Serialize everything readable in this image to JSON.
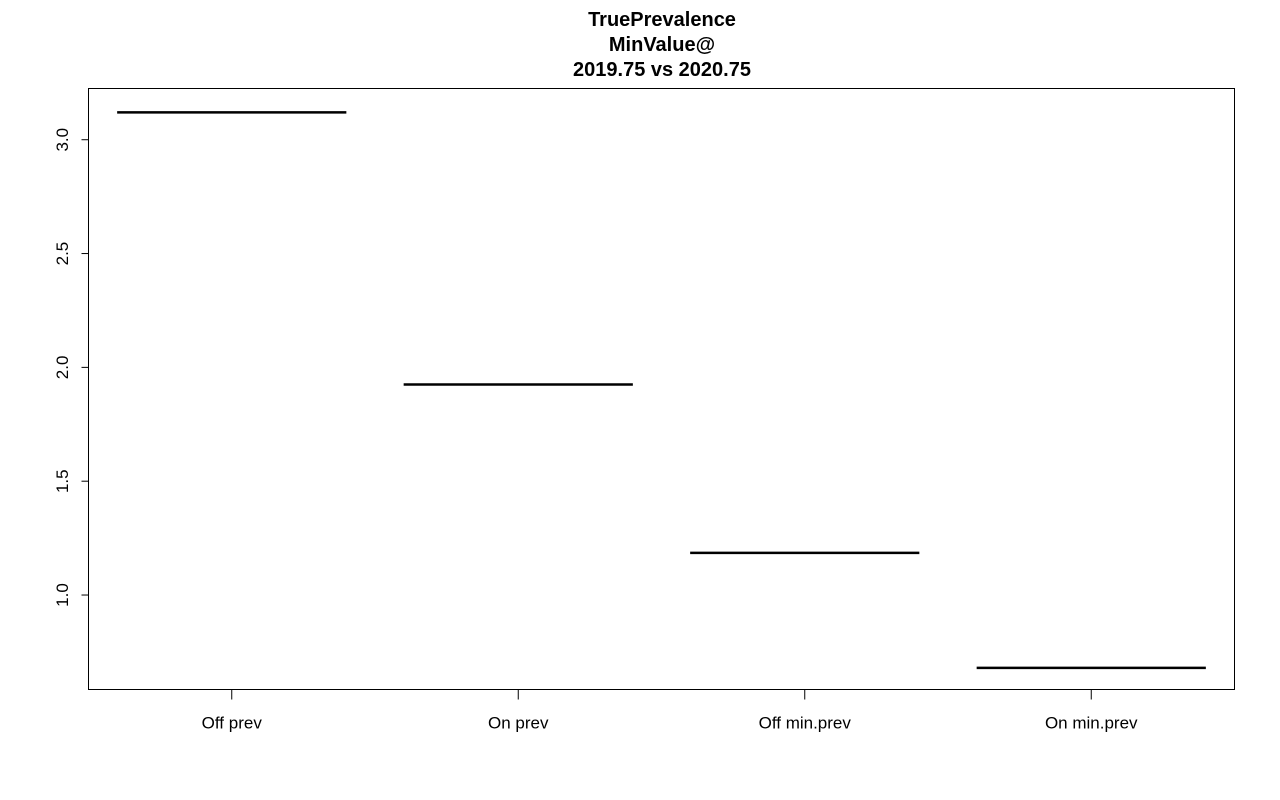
{
  "chart_data": {
    "type": "box",
    "title_lines": [
      "TruePrevalence",
      "MinValue@",
      "2019.75 vs 2020.75"
    ],
    "categories": [
      "Off prev",
      "On prev",
      "Off min.prev",
      "On min.prev"
    ],
    "values": [
      3.12,
      1.925,
      1.185,
      0.68
    ],
    "xlabel": "",
    "ylabel": "",
    "yticks": [
      1.0,
      1.5,
      2.0,
      2.5,
      3.0
    ],
    "ytick_labels": [
      "1.0",
      "1.5",
      "2.0",
      "2.5",
      "3.0"
    ],
    "ylim": [
      0.585,
      3.225
    ],
    "grid": false,
    "legend": "none",
    "colors": {
      "line": "#000000",
      "axis": "#000000",
      "background": "#ffffff"
    }
  }
}
